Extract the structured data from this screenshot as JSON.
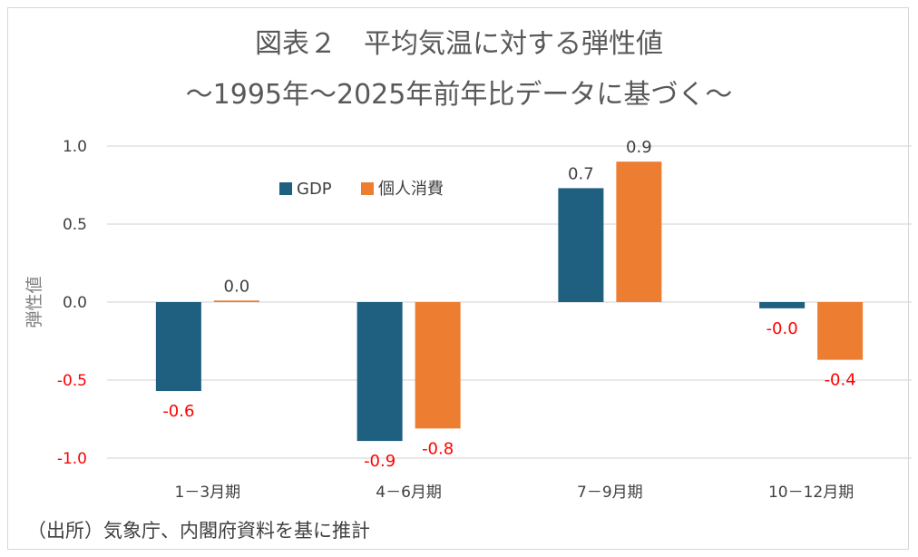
{
  "chart_data": {
    "type": "bar",
    "title": "図表２　平均気温に対する弾性値",
    "subtitle": "～1995年～2025年前年比データに基づく～",
    "ylabel": "弾性値",
    "xlabel": "",
    "categories": [
      "1－3月期",
      "4－6月期",
      "7－9月期",
      "10－12月期"
    ],
    "series": [
      {
        "name": "GDP",
        "color": "#1f5f80",
        "values": [
          -0.57,
          -0.89,
          0.73,
          -0.04
        ],
        "labels": [
          "-0.6",
          "-0.9",
          "0.7",
          "-0.0"
        ]
      },
      {
        "name": "個人消費",
        "color": "#ed7d31",
        "values": [
          0.01,
          -0.81,
          0.9,
          -0.37
        ],
        "labels": [
          "0.0",
          "-0.8",
          "0.9",
          "-0.4"
        ]
      }
    ],
    "ylim": [
      -1.0,
      1.0
    ],
    "yticks": [
      {
        "value": 1.0,
        "label": "1.0"
      },
      {
        "value": 0.5,
        "label": "0.5"
      },
      {
        "value": 0.0,
        "label": "0.0"
      },
      {
        "value": -0.5,
        "label": "-0.5"
      },
      {
        "value": -1.0,
        "label": "-1.0"
      }
    ],
    "negative_color": "#ff0000",
    "grid": true,
    "legend_position": "top-left"
  },
  "source_note": "（出所）気象庁、内閣府資料を基に推計"
}
